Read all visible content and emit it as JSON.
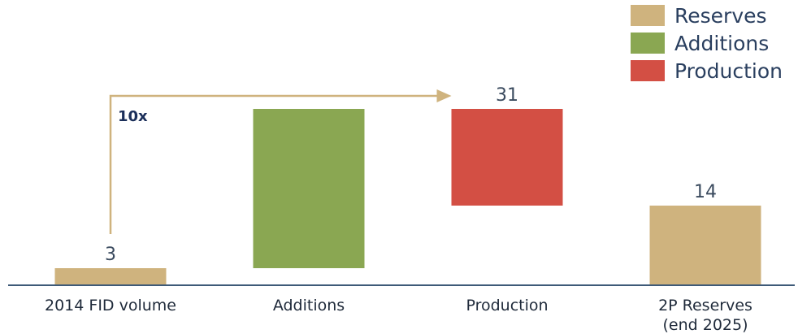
{
  "chart_data": {
    "type": "bar",
    "subtype": "waterfall",
    "title": "",
    "xlabel": "",
    "ylabel": "",
    "categories": [
      "2014 FID volume",
      "Additions",
      "Production",
      "2P Reserves\n(end 2025)"
    ],
    "bars": [
      {
        "category": "2014 FID volume",
        "series": "Reserves",
        "start": 0,
        "end": 3,
        "label": "3"
      },
      {
        "category": "Additions",
        "series": "Additions",
        "start": 3,
        "end": 31,
        "label": ""
      },
      {
        "category": "Production",
        "series": "Production",
        "start": 14,
        "end": 31,
        "label": "31"
      },
      {
        "category": "2P Reserves\n(end 2025)",
        "series": "Reserves",
        "start": 0,
        "end": 14,
        "label": "14"
      }
    ],
    "legend": [
      {
        "name": "Reserves",
        "color": "#cfb37e"
      },
      {
        "name": "Additions",
        "color": "#8aa752"
      },
      {
        "name": "Production",
        "color": "#d34f44"
      }
    ],
    "legend_position": "top-right",
    "annotation": {
      "text": "10x",
      "from_category": "2014 FID volume",
      "to_category": "Production",
      "color": "#cfb37e"
    },
    "ylim": [
      0,
      34
    ],
    "grid": false,
    "axis_color": "#3e5a78"
  }
}
